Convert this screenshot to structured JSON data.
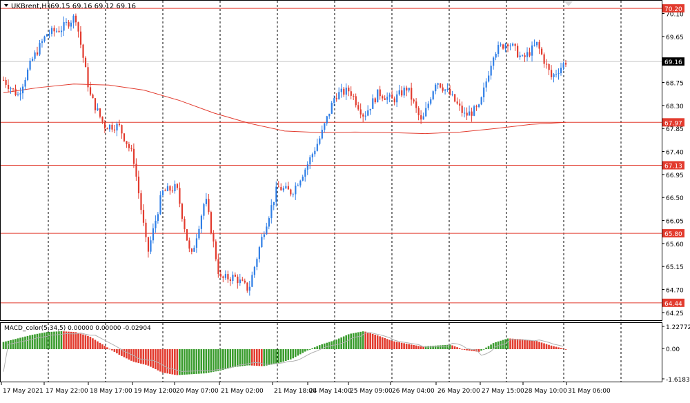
{
  "header": {
    "symbol_label": "UKBrent,H1",
    "ohlc_label": "69.15 69.16 69.12 69.16"
  },
  "macd": {
    "label": "MACD_color(5,34,5) 0.00000 0.00000 -0.02904",
    "axis_ticks": [
      "1.22772",
      "0.00",
      "-1.61833"
    ]
  },
  "colors": {
    "bull": "#2f7ee6",
    "bear": "#e23b2e",
    "level_line": "#e23b2e",
    "ma_line": "#e23b2e",
    "macd_up": "#3a9c2e",
    "macd_down": "#e23b2e",
    "macd_signal": "#b0b0b0",
    "grid": "#000000",
    "current_price_line": "#c8c8c8"
  },
  "chart_data": {
    "type": "candlestick",
    "title": "UKBrent,H1",
    "ylim": [
      64.1,
      70.35
    ],
    "y_ticks": [
      70.1,
      69.65,
      69.2,
      68.75,
      68.3,
      67.85,
      67.4,
      66.95,
      66.5,
      66.05,
      65.6,
      65.15,
      64.7,
      64.25
    ],
    "y_tick_labels": [
      "70.10",
      "69.65",
      "69.20",
      "68.75",
      "68.30",
      "67.85",
      "67.40",
      "66.95",
      "66.50",
      "66.05",
      "65.60",
      "65.15",
      "64.70",
      "64.25"
    ],
    "x_tick_labels": [
      "17 May 2021",
      "17 May 22:00",
      "18 May 17:00",
      "19 May 12:00",
      "20 May 07:00",
      "21 May 02:00",
      "21 May 18:00",
      "24 May 14:00",
      "25 May 09:00",
      "26 May 04:00",
      "26 May 20:00",
      "27 May 15:00",
      "28 May 10:00",
      "31 May 06:00"
    ],
    "horizontal_levels": [
      70.2,
      67.97,
      67.13,
      65.8,
      64.44
    ],
    "horizontal_level_labels": [
      "70.20",
      "67.97",
      "67.13",
      "65.80",
      "64.44"
    ],
    "current_price": 69.16,
    "current_price_label": "69.16",
    "moving_average_path": [
      68.55,
      68.65,
      68.72,
      68.7,
      68.6,
      68.4,
      68.15,
      67.95,
      67.8,
      67.77,
      67.78,
      67.77,
      67.75,
      67.78,
      67.85,
      67.93,
      67.97
    ],
    "close_path": [
      68.8,
      68.5,
      69.2,
      69.7,
      69.8,
      70.05,
      68.5,
      67.9,
      67.9,
      67.3,
      65.4,
      66.6,
      66.7,
      65.3,
      66.5,
      64.9,
      64.95,
      64.7,
      65.8,
      66.7,
      66.6,
      67.1,
      67.7,
      68.5,
      68.6,
      68.1,
      68.55,
      68.4,
      68.65,
      67.95,
      68.8,
      68.5,
      68.1,
      68.25,
      69.35,
      69.55,
      69.2,
      69.5,
      68.85,
      69.16
    ],
    "macd_histogram": [
      0.4,
      0.6,
      0.8,
      0.95,
      1.0,
      0.95,
      0.7,
      0.2,
      -0.3,
      -0.7,
      -0.9,
      -1.3,
      -1.45,
      -1.4,
      -1.35,
      -1.2,
      -1.0,
      -0.9,
      -0.95,
      -0.8,
      -0.55,
      -0.1,
      0.25,
      0.5,
      0.85,
      1.0,
      0.75,
      0.45,
      0.3,
      0.15,
      0.2,
      0.25,
      -0.05,
      -0.15,
      0.35,
      0.6,
      0.55,
      0.45,
      0.2,
      0.0
    ],
    "macd_ylim": [
      -1.61833,
      1.22772
    ]
  }
}
